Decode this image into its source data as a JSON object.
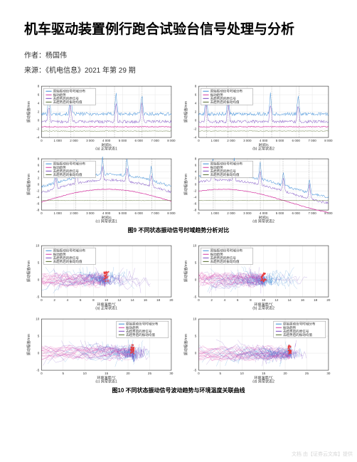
{
  "title": "机车驱动装置例行跑合试验台信号处理与分析",
  "author_line": "作者：杨国伟",
  "source_line": "来源：《机电信息》2021 年第 29 期",
  "fig9_caption": "图9  不同状态振动信号时域趋势分析对比",
  "fig10_caption": "图10  不同状态振动信号波动趋势与环境温度关联曲线",
  "watermark": "文档  由【证券云文库】提供",
  "colors": {
    "background": "#ffffff",
    "axis": "#333333",
    "grid": "#e0e0e0",
    "text": "#333333",
    "series1": "#3a8bd6",
    "series2": "#d63aa3",
    "series3": "#7a4cc2",
    "series4": "#556b2f",
    "legend_border": "#777777",
    "vline": "#777777",
    "scatter_red": "#e83a3a"
  },
  "chart_common": {
    "legend_fontsize": 4.5,
    "axis_label_fontsize": 5,
    "tick_fontsize": 4.5,
    "ylabel_time": "振动幅值/mm",
    "xlabel_time": "时间/s",
    "ylabel_scatter": "振动幅值/mm",
    "xlabel_scatter": "环境温度/℃"
  },
  "legend_items": [
    "原始振动信号时域分布",
    "振动趋势",
    "去趋势后的原信号",
    "去趋势后的振动均值"
  ],
  "fig9_rows": {
    "row1": {
      "xlim": [
        0,
        8000
      ],
      "xticks": [
        0,
        1000,
        2000,
        3000,
        4000,
        5000,
        6000,
        7000,
        8000
      ],
      "ylim": [
        -4,
        8
      ],
      "yticks": [
        -4,
        -2,
        0,
        2,
        4,
        6,
        8
      ],
      "subtitles": [
        "(a) 正常状态1",
        "(b) 正常状态2"
      ],
      "vlines": [
        500,
        1800,
        4500,
        6200
      ]
    },
    "row2": {
      "xlim": [
        0,
        8000
      ],
      "xticks": [
        0,
        1000,
        2000,
        3000,
        4000,
        5000,
        6000,
        7000,
        8000
      ],
      "ylim": [
        -8,
        8
      ],
      "yticks": [
        -8,
        -6,
        -4,
        -2,
        0,
        2,
        4,
        6,
        8
      ],
      "subtitles": [
        "(c) 异常状态1",
        "(d) 异常状态2"
      ],
      "vlines": [
        900,
        2100,
        3800,
        5200,
        6800
      ]
    }
  },
  "fig10_rows": {
    "row1": {
      "xlim": [
        0,
        20
      ],
      "xticks": [
        0,
        2,
        4,
        6,
        8,
        10,
        12,
        14,
        16,
        18,
        20
      ],
      "ylim": [
        -5,
        10
      ],
      "yticks": [
        -5,
        0,
        5,
        10
      ],
      "subtitles": [
        "(a) 正常状态1",
        "(b) 正常状态2"
      ],
      "cluster_x": [
        9,
        11
      ],
      "red_x": 10
    },
    "row2": {
      "xlim": [
        0,
        30
      ],
      "xticks": [
        0,
        5,
        10,
        15,
        20,
        25,
        30
      ],
      "ylim": [
        -5,
        10
      ],
      "yticks": [
        -5,
        0,
        5,
        10
      ],
      "subtitles": [
        "(c) 异常状态1",
        "(d) 异常状态2"
      ],
      "cluster_x": [
        20,
        22
      ],
      "red_x": 21
    }
  }
}
